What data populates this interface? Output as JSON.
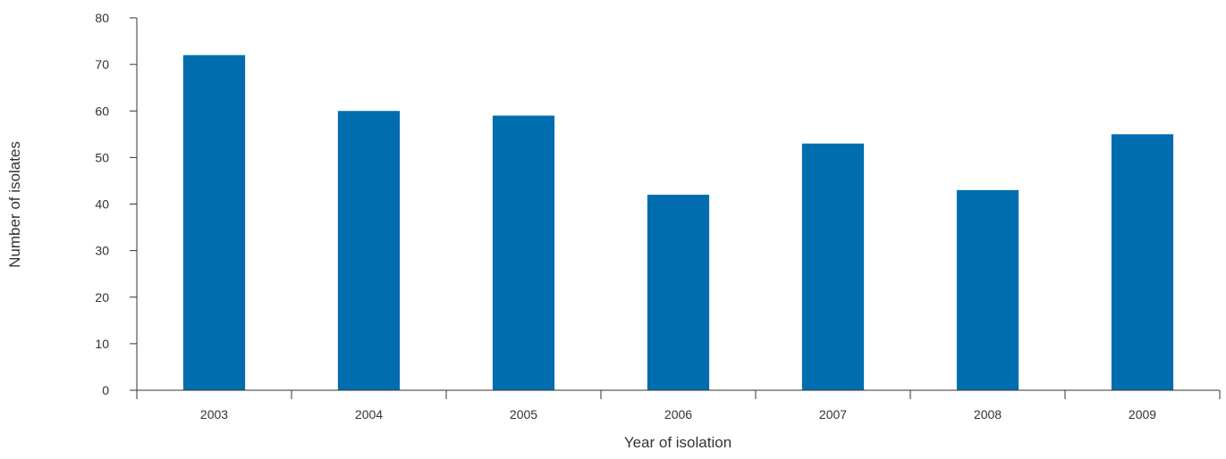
{
  "chart_data": {
    "type": "bar",
    "categories": [
      "2003",
      "2004",
      "2005",
      "2006",
      "2007",
      "2008",
      "2009"
    ],
    "values": [
      72,
      60,
      59,
      42,
      53,
      43,
      55
    ],
    "title": "",
    "xlabel": "Year of isolation",
    "ylabel": "Number of isolates",
    "ylim": [
      0,
      80
    ],
    "yticks": [
      0,
      10,
      20,
      30,
      40,
      50,
      60,
      70,
      80
    ],
    "grid": false,
    "legend": "none",
    "bar_color": "#006daf",
    "axis_color": "#333333"
  }
}
